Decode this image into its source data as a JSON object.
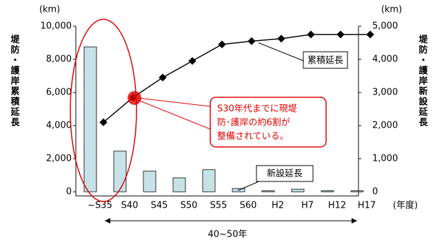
{
  "chart_data": {
    "type": "bar-line",
    "categories": [
      "~S35",
      "S40",
      "S45",
      "S50",
      "S55",
      "S60",
      "H2",
      "H7",
      "H12",
      "H17"
    ],
    "x_label": "(年度)",
    "y_label": "堤防・護岸累積延長",
    "y2_label": "堤防・護岸新設延長",
    "y_unit": "(km)",
    "y2_unit": "(km)",
    "ylim": [
      0,
      10000
    ],
    "yticks": [
      0,
      {
        "value": 2000,
        "label": "2,000"
      },
      {
        "value": 4000,
        "label": "4,000"
      },
      {
        "value": 6000,
        "label": "6,000"
      },
      {
        "value": 8000,
        "label": "8,000"
      },
      {
        "value": 10000,
        "label": "10,000"
      }
    ],
    "y2lim": [
      0,
      5000
    ],
    "y2ticks": [
      0,
      {
        "value": 1000,
        "label": "1,000"
      },
      {
        "value": 2000,
        "label": "2,000"
      },
      {
        "value": 3000,
        "label": "3,000"
      },
      {
        "value": 4000,
        "label": "4,000"
      },
      {
        "value": 5000,
        "label": "5,000"
      }
    ],
    "series": [
      {
        "name": "新設延長",
        "type": "bar",
        "axis": "y2",
        "color": "#c6e2e6",
        "values": [
          4375,
          1230,
          625,
          420,
          670,
          100,
          30,
          80,
          30,
          30
        ]
      },
      {
        "name": "累積延長",
        "type": "line",
        "axis": "y",
        "color": "#000000",
        "values": [
          4200,
          5700,
          6900,
          7900,
          8900,
          9100,
          9250,
          9500,
          9500,
          9500
        ]
      }
    ],
    "annotation": [
      "S30年代までに現堤",
      "防･護岸の約6割が",
      "整備されている。"
    ],
    "span_label": "40~50年"
  }
}
